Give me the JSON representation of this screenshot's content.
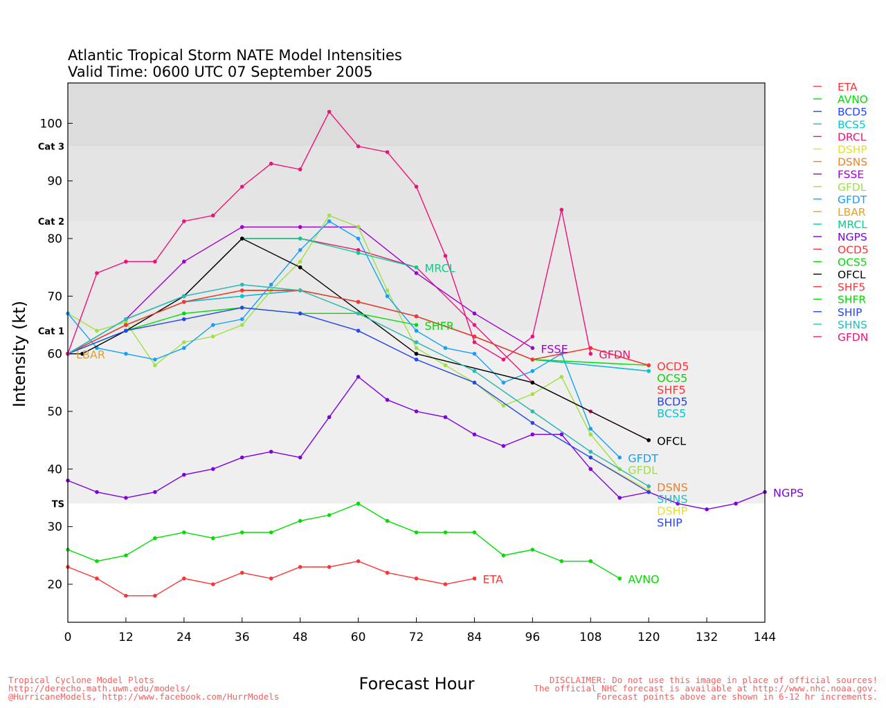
{
  "chart_data": {
    "type": "line",
    "title": [
      "Atlantic Tropical Storm NATE Model Intensities",
      "Valid Time: 0600 UTC 07 September 2005"
    ],
    "xlabel": "Forecast Hour",
    "ylabel": "Intensity (kt)",
    "xlim": [
      0,
      144
    ],
    "ylim": [
      13.4,
      107
    ],
    "xticks": [
      0,
      12,
      24,
      36,
      48,
      60,
      72,
      84,
      96,
      108,
      120,
      132,
      144
    ],
    "yticks": [
      20,
      30,
      40,
      50,
      60,
      70,
      80,
      90,
      100
    ],
    "categories": [
      {
        "label": "TS",
        "from": 34,
        "to": 64,
        "color": "#efefef"
      },
      {
        "label": "Cat 1",
        "from": 64,
        "to": 83,
        "color": "#e9e9e9"
      },
      {
        "label": "Cat 2",
        "from": 83,
        "to": 96,
        "color": "#e4e4e4"
      },
      {
        "label": "Cat 3",
        "from": 96,
        "to": 107,
        "color": "#dcdcdc"
      }
    ],
    "legend_position": "right",
    "series": [
      {
        "name": "ETA",
        "color": "#ff3333",
        "label": true,
        "points": [
          [
            0,
            23
          ],
          [
            6,
            21
          ],
          [
            12,
            18
          ],
          [
            18,
            18
          ],
          [
            24,
            21
          ],
          [
            30,
            20
          ],
          [
            36,
            22
          ],
          [
            42,
            21
          ],
          [
            48,
            23
          ],
          [
            54,
            23
          ],
          [
            60,
            24
          ],
          [
            66,
            22
          ],
          [
            72,
            21
          ],
          [
            78,
            20
          ],
          [
            84,
            21
          ]
        ]
      },
      {
        "name": "AVNO",
        "color": "#00dd00",
        "label": true,
        "points": [
          [
            0,
            26
          ],
          [
            6,
            24
          ],
          [
            12,
            25
          ],
          [
            18,
            28
          ],
          [
            24,
            29
          ],
          [
            30,
            28
          ],
          [
            36,
            29
          ],
          [
            42,
            29
          ],
          [
            48,
            31
          ],
          [
            54,
            32
          ],
          [
            60,
            34
          ],
          [
            66,
            31
          ],
          [
            72,
            29
          ],
          [
            78,
            29
          ],
          [
            84,
            29
          ],
          [
            90,
            25
          ],
          [
            96,
            26
          ],
          [
            102,
            24
          ],
          [
            108,
            24
          ],
          [
            114,
            21
          ]
        ]
      },
      {
        "name": "BCD5",
        "color": "#2244ff",
        "label": true,
        "points": [
          [
            0,
            60
          ],
          [
            12,
            65
          ],
          [
            24,
            69
          ],
          [
            36,
            70
          ],
          [
            48,
            71
          ],
          [
            60,
            69
          ],
          [
            72,
            66.5
          ],
          [
            84,
            63
          ],
          [
            96,
            59
          ],
          [
            120,
            57
          ]
        ]
      },
      {
        "name": "BCS5",
        "color": "#00c8d4",
        "label": true,
        "points": [
          [
            0,
            60
          ],
          [
            12,
            65
          ],
          [
            24,
            69
          ],
          [
            36,
            70
          ],
          [
            48,
            71
          ],
          [
            60,
            69
          ],
          [
            72,
            66.5
          ],
          [
            84,
            63
          ],
          [
            96,
            59
          ],
          [
            120,
            57
          ]
        ]
      },
      {
        "name": "DRCL",
        "color": "#f0107a",
        "label": false,
        "points": [
          [
            0,
            60
          ],
          [
            12,
            66
          ],
          [
            24,
            70
          ],
          [
            36,
            80
          ],
          [
            48,
            80
          ],
          [
            60,
            78
          ],
          [
            72,
            75
          ],
          [
            84,
            65
          ],
          [
            96,
            55
          ],
          [
            108,
            50
          ],
          [
            120,
            45
          ]
        ]
      },
      {
        "name": "DSHP",
        "color": "#e8e020",
        "label": true,
        "points": [
          [
            0,
            60
          ],
          [
            12,
            64
          ],
          [
            24,
            66
          ],
          [
            36,
            68
          ],
          [
            48,
            67
          ],
          [
            60,
            64
          ],
          [
            72,
            59
          ],
          [
            84,
            55
          ],
          [
            96,
            48
          ],
          [
            108,
            42
          ],
          [
            120,
            36.3
          ]
        ]
      },
      {
        "name": "DSNS",
        "color": "#f08020",
        "label": true,
        "points": [
          [
            0,
            60
          ],
          [
            12,
            66
          ],
          [
            24,
            70
          ],
          [
            36,
            72
          ],
          [
            48,
            71
          ],
          [
            60,
            67
          ],
          [
            72,
            62
          ],
          [
            84,
            57
          ],
          [
            96,
            50
          ],
          [
            108,
            43
          ],
          [
            120,
            37
          ]
        ]
      },
      {
        "name": "FSSE",
        "color": "#a000d0",
        "label": true,
        "points": [
          [
            0,
            60
          ],
          [
            12,
            66
          ],
          [
            24,
            76
          ],
          [
            36,
            82
          ],
          [
            48,
            82
          ],
          [
            60,
            82
          ],
          [
            72,
            74
          ],
          [
            84,
            67
          ],
          [
            96,
            61
          ]
        ]
      },
      {
        "name": "GFDL",
        "color": "#a0e040",
        "label": true,
        "points": [
          [
            0,
            67
          ],
          [
            6,
            64
          ],
          [
            12,
            65.5
          ],
          [
            18,
            58
          ],
          [
            24,
            62
          ],
          [
            30,
            63
          ],
          [
            36,
            65
          ],
          [
            42,
            71
          ],
          [
            48,
            76
          ],
          [
            54,
            84
          ],
          [
            60,
            82
          ],
          [
            66,
            71
          ],
          [
            72,
            61
          ],
          [
            78,
            58
          ],
          [
            84,
            55
          ],
          [
            90,
            51
          ],
          [
            96,
            53
          ],
          [
            102,
            56
          ],
          [
            108,
            46
          ],
          [
            114,
            40
          ]
        ]
      },
      {
        "name": "GFDT",
        "color": "#10a0ff",
        "label": true,
        "points": [
          [
            0,
            67
          ],
          [
            6,
            61
          ],
          [
            12,
            60
          ],
          [
            18,
            59
          ],
          [
            24,
            61
          ],
          [
            30,
            65
          ],
          [
            36,
            66
          ],
          [
            42,
            72
          ],
          [
            48,
            78
          ],
          [
            54,
            83
          ],
          [
            60,
            80
          ],
          [
            66,
            70
          ],
          [
            72,
            64
          ],
          [
            78,
            61
          ],
          [
            84,
            60
          ],
          [
            90,
            55
          ],
          [
            96,
            57
          ],
          [
            102,
            60
          ],
          [
            108,
            47
          ],
          [
            114,
            42
          ]
        ]
      },
      {
        "name": "LBAR",
        "color": "#e0a030",
        "label": true,
        "points": [
          [
            0,
            60
          ]
        ]
      },
      {
        "name": "MRCL",
        "color": "#00d090",
        "label": true,
        "points": [
          [
            0,
            60
          ],
          [
            12,
            66
          ],
          [
            24,
            70
          ],
          [
            36,
            80
          ],
          [
            48,
            80
          ],
          [
            60,
            77.5
          ],
          [
            72,
            75
          ]
        ]
      },
      {
        "name": "NGPS",
        "color": "#8000e0",
        "label": true,
        "points": [
          [
            0,
            38
          ],
          [
            6,
            36
          ],
          [
            12,
            35
          ],
          [
            18,
            36
          ],
          [
            24,
            39
          ],
          [
            30,
            40
          ],
          [
            36,
            42
          ],
          [
            42,
            43
          ],
          [
            48,
            42
          ],
          [
            54,
            49
          ],
          [
            60,
            56
          ],
          [
            66,
            52
          ],
          [
            72,
            50
          ],
          [
            78,
            49
          ],
          [
            84,
            46
          ],
          [
            90,
            44
          ],
          [
            96,
            46
          ],
          [
            102,
            46
          ],
          [
            108,
            40
          ],
          [
            114,
            35
          ],
          [
            120,
            36
          ],
          [
            126,
            34
          ],
          [
            132,
            33
          ],
          [
            138,
            34
          ],
          [
            144,
            36
          ]
        ]
      },
      {
        "name": "OCD5",
        "color": "#ff3333",
        "label": true,
        "points": [
          [
            0,
            60
          ],
          [
            12,
            65
          ],
          [
            24,
            69
          ],
          [
            36,
            71
          ],
          [
            48,
            71
          ],
          [
            60,
            69
          ],
          [
            72,
            66.5
          ],
          [
            84,
            63
          ],
          [
            96,
            59
          ],
          [
            108,
            61
          ],
          [
            120,
            58
          ]
        ]
      },
      {
        "name": "OCS5",
        "color": "#00dd00",
        "label": true,
        "points": [
          [
            0,
            60
          ],
          [
            12,
            65
          ],
          [
            24,
            69
          ],
          [
            36,
            71
          ],
          [
            48,
            71
          ],
          [
            60,
            69
          ],
          [
            72,
            66.5
          ],
          [
            84,
            63
          ],
          [
            96,
            59
          ],
          [
            120,
            58
          ]
        ]
      },
      {
        "name": "OFCL",
        "color": "#000000",
        "label": true,
        "points": [
          [
            0,
            60
          ],
          [
            3,
            60
          ],
          [
            12,
            64
          ],
          [
            24,
            70
          ],
          [
            36,
            80
          ],
          [
            48,
            75
          ],
          [
            72,
            60
          ],
          [
            96,
            55
          ],
          [
            120,
            45
          ]
        ]
      },
      {
        "name": "SHF5",
        "color": "#ff3333",
        "label": true,
        "points": [
          [
            0,
            60
          ],
          [
            12,
            65
          ],
          [
            24,
            69
          ],
          [
            36,
            71
          ],
          [
            48,
            71
          ],
          [
            60,
            69
          ],
          [
            72,
            66.5
          ],
          [
            84,
            63
          ],
          [
            96,
            59
          ],
          [
            108,
            61
          ],
          [
            120,
            58
          ]
        ]
      },
      {
        "name": "SHFR",
        "color": "#00dd00",
        "label": true,
        "points": [
          [
            0,
            60
          ],
          [
            12,
            64
          ],
          [
            24,
            67
          ],
          [
            36,
            68
          ],
          [
            48,
            67
          ],
          [
            60,
            67
          ],
          [
            72,
            65
          ]
        ]
      },
      {
        "name": "SHIP",
        "color": "#2244ff",
        "label": true,
        "points": [
          [
            0,
            60
          ],
          [
            12,
            64
          ],
          [
            24,
            66
          ],
          [
            36,
            68
          ],
          [
            48,
            67
          ],
          [
            60,
            64
          ],
          [
            72,
            59
          ],
          [
            84,
            55
          ],
          [
            96,
            48
          ],
          [
            108,
            42
          ],
          [
            120,
            36
          ]
        ]
      },
      {
        "name": "SHNS",
        "color": "#20c0c0",
        "label": true,
        "points": [
          [
            0,
            60
          ],
          [
            12,
            66
          ],
          [
            24,
            70
          ],
          [
            36,
            72
          ],
          [
            48,
            71
          ],
          [
            60,
            67
          ],
          [
            72,
            62
          ],
          [
            84,
            57
          ],
          [
            96,
            50
          ],
          [
            108,
            43
          ],
          [
            120,
            37
          ]
        ]
      },
      {
        "name": "GFDN",
        "color": "#f0107a",
        "label": true,
        "points": [
          [
            0,
            60
          ],
          [
            6,
            74
          ],
          [
            12,
            76
          ],
          [
            18,
            76
          ],
          [
            24,
            83
          ],
          [
            30,
            84
          ],
          [
            36,
            89
          ],
          [
            42,
            93
          ],
          [
            48,
            92
          ],
          [
            54,
            102
          ],
          [
            60,
            96
          ],
          [
            66,
            95
          ],
          [
            72,
            89
          ],
          [
            78,
            77
          ],
          [
            84,
            62
          ],
          [
            90,
            59
          ],
          [
            96,
            63
          ],
          [
            102,
            85
          ],
          [
            108,
            60
          ]
        ]
      }
    ]
  },
  "footer": {
    "left": [
      "Tropical Cyclone Model Plots",
      "http://derecho.math.uwm.edu/models/",
      "@HurricaneModels, http://www.facebook.com/HurrModels"
    ],
    "right": [
      "DISCLAIMER: Do not use this image in place of official sources!",
      "The official NHC forecast is available at http://www.nhc.noaa.gov.",
      "Forecast points above are shown in 6-12 hr increments."
    ]
  }
}
